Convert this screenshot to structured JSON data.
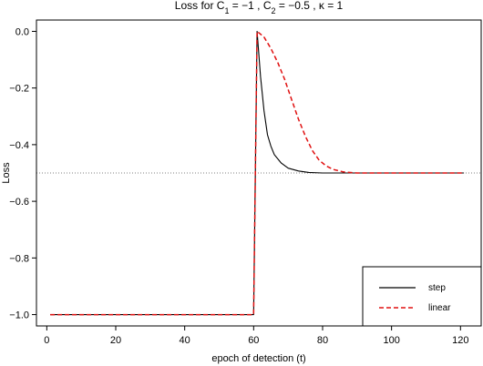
{
  "chart_data": {
    "type": "line",
    "title": "Loss for C₁ = −1 , C₂ = −0.5 , κ = 1",
    "xlabel": "epoch of detection (t)",
    "ylabel": "Loss",
    "xlim": [
      -3,
      126
    ],
    "ylim": [
      -1.04,
      0.04
    ],
    "xticks": [
      0,
      20,
      40,
      60,
      80,
      100,
      120
    ],
    "xtick_labels": [
      "0",
      "20",
      "40",
      "60",
      "80",
      "100",
      "120"
    ],
    "yticks": [
      -1.0,
      -0.8,
      -0.6,
      -0.4,
      -0.2,
      0.0
    ],
    "ytick_labels": [
      "−1.0",
      "−0.8",
      "−0.6",
      "−0.4",
      "−0.2",
      "0.0"
    ],
    "reference_line": {
      "y": -0.5,
      "style": "dotted",
      "color": "#555555"
    },
    "legend_position": "bottom-right",
    "grid": false,
    "series": [
      {
        "name": "step",
        "color": "#000000",
        "dash": "solid",
        "points": [
          [
            1,
            -1.0
          ],
          [
            60,
            -1.0
          ],
          [
            61,
            0.0
          ],
          [
            62,
            -0.16
          ],
          [
            63,
            -0.28
          ],
          [
            64,
            -0.365
          ],
          [
            65,
            -0.405
          ],
          [
            66,
            -0.435
          ],
          [
            68,
            -0.465
          ],
          [
            70,
            -0.483
          ],
          [
            73,
            -0.493
          ],
          [
            76,
            -0.498
          ],
          [
            80,
            -0.5
          ],
          [
            90,
            -0.5
          ],
          [
            100,
            -0.5
          ],
          [
            110,
            -0.5
          ],
          [
            121,
            -0.5
          ]
        ]
      },
      {
        "name": "linear",
        "color": "#e01010",
        "dash": "dashed",
        "points": [
          [
            1,
            -1.0
          ],
          [
            60,
            -1.0
          ],
          [
            61,
            0.0
          ],
          [
            63,
            -0.02
          ],
          [
            65,
            -0.06
          ],
          [
            67,
            -0.11
          ],
          [
            69,
            -0.17
          ],
          [
            71,
            -0.24
          ],
          [
            73,
            -0.31
          ],
          [
            75,
            -0.37
          ],
          [
            77,
            -0.42
          ],
          [
            79,
            -0.455
          ],
          [
            81,
            -0.475
          ],
          [
            83,
            -0.487
          ],
          [
            86,
            -0.496
          ],
          [
            90,
            -0.5
          ],
          [
            100,
            -0.5
          ],
          [
            110,
            -0.5
          ],
          [
            121,
            -0.5
          ]
        ]
      }
    ]
  }
}
